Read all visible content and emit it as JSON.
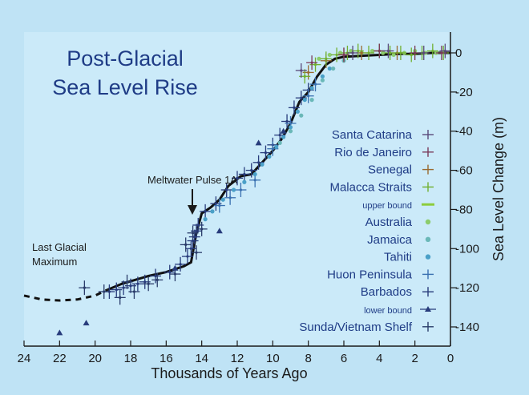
{
  "chart_data": {
    "type": "scatter",
    "title_lines": [
      "Post-Glacial",
      "Sea Level Rise"
    ],
    "xlabel": "Thousands of Years Ago",
    "ylabel": "Sea Level Change (m)",
    "xlim": [
      24,
      0
    ],
    "ylim": [
      -150,
      3
    ],
    "x_ticks": [
      24,
      22,
      20,
      18,
      16,
      14,
      12,
      10,
      8,
      6,
      4,
      2,
      0
    ],
    "y_ticks": [
      0,
      -20,
      -40,
      -60,
      -80,
      -100,
      -120,
      -140
    ],
    "grid": false,
    "legend_position": "right",
    "legend": [
      {
        "label": "Santa Catarina",
        "color": "#5a4a7a",
        "marker": "cross"
      },
      {
        "label": "Rio de Janeiro",
        "color": "#7a3a5a",
        "marker": "cross"
      },
      {
        "label": "Senegal",
        "color": "#9a6a30",
        "marker": "cross"
      },
      {
        "label": "Malacca Straits",
        "color": "#70b030",
        "marker": "cross"
      },
      {
        "label": "upper bound",
        "color": "#8ccc3c",
        "marker": "dash"
      },
      {
        "label": "Australia",
        "color": "#8ccc6c",
        "marker": "dot"
      },
      {
        "label": "Jamaica",
        "color": "#6ab8b8",
        "marker": "dot"
      },
      {
        "label": "Tahiti",
        "color": "#4aa0c8",
        "marker": "dot"
      },
      {
        "label": "Huon Peninsula",
        "color": "#3a70b0",
        "marker": "cross"
      },
      {
        "label": "Barbados",
        "color": "#283c7c",
        "marker": "cross"
      },
      {
        "label": "lower bound",
        "color": "#283c7c",
        "marker": "triangle"
      },
      {
        "label": "Sunda/Vietnam Shelf",
        "color": "#2a3c6a",
        "marker": "cross"
      }
    ],
    "annotations": [
      {
        "text": "Meltwater Pulse 1A",
        "x": 14.4,
        "y": -86
      },
      {
        "text_lines": [
          "Last Glacial",
          "Maximum"
        ],
        "x": 22,
        "y": -125
      }
    ],
    "trend_dashed": {
      "x": [
        24,
        23,
        22,
        21,
        20,
        19.3
      ],
      "y": [
        -124,
        -126,
        -126.5,
        -126,
        -124,
        -121
      ]
    },
    "trend_solid": {
      "x": [
        19.3,
        18.5,
        17,
        16,
        15,
        14.6,
        14.3,
        14,
        13.5,
        13,
        12.5,
        11.8,
        11.2,
        10.5,
        10,
        9.5,
        9,
        8.5,
        8,
        7.5,
        7,
        6.5,
        6,
        5,
        4,
        3,
        2,
        1,
        0
      ],
      "y": [
        -121,
        -118,
        -114,
        -112,
        -109,
        -107,
        -92,
        -82,
        -79,
        -75,
        -68,
        -63,
        -62,
        -55,
        -50,
        -44,
        -36,
        -25,
        -20,
        -12,
        -6,
        -3,
        -2,
        -1.5,
        -1,
        -0.5,
        -0.5,
        0,
        0
      ]
    },
    "series": [
      {
        "name": "Barbados",
        "color": "#283c7c",
        "marker": "cross",
        "x": [
          19.2,
          18.8,
          18.4,
          18.0,
          17.6,
          17.2,
          16.6,
          15.8,
          15.2,
          14.8,
          14.6,
          14.5,
          14.4,
          14.3,
          14.2,
          13.8,
          13.2,
          12.6,
          12.0,
          11.6,
          11.2,
          10.8,
          10.4,
          10.0,
          9.6,
          9.2,
          8.8,
          8.4,
          8.0
        ],
        "y": [
          -122,
          -121,
          -120,
          -119,
          -118,
          -117,
          -114,
          -112,
          -108,
          -104,
          -100,
          -96,
          -94,
          -91,
          -88,
          -81,
          -77,
          -70,
          -64,
          -62,
          -60,
          -56,
          -51,
          -47,
          -42,
          -35,
          -28,
          -23,
          -19
        ]
      },
      {
        "name": "Sunda/Vietnam Shelf",
        "color": "#2a3c6a",
        "marker": "cross",
        "x": [
          20.6,
          19.5,
          18.6,
          18.2,
          17.8,
          17.0,
          16.5,
          15.5,
          14.9,
          14.5,
          14.3,
          14.0
        ],
        "y": [
          -120,
          -122,
          -125,
          -117,
          -122,
          -118,
          -116,
          -113,
          -98,
          -92,
          -102,
          -90
        ]
      },
      {
        "name": "Huon Peninsula",
        "color": "#3a70b0",
        "marker": "cross",
        "x": [
          13.0,
          12.4,
          11.8,
          11.0,
          10.0,
          9.0,
          8.0,
          7.6
        ],
        "y": [
          -78,
          -74,
          -70,
          -65,
          -49,
          -36,
          -22,
          -16
        ]
      },
      {
        "name": "Tahiti",
        "color": "#4aa0c8",
        "marker": "dot",
        "x": [
          13.8,
          13.4,
          12.8,
          12.2,
          11.6,
          11.0,
          10.6,
          10.2,
          9.8,
          9.4,
          9.0,
          8.6,
          8.2,
          7.8,
          7.2,
          6.8
        ],
        "y": [
          -85,
          -81,
          -75,
          -70,
          -66,
          -62,
          -57,
          -53,
          -48,
          -43,
          -38,
          -30,
          -24,
          -18,
          -12,
          -8
        ]
      },
      {
        "name": "Jamaica",
        "color": "#6ab8b8",
        "marker": "dot",
        "x": [
          9.6,
          9.0,
          8.4,
          7.8,
          7.2,
          6.6,
          6.0
        ],
        "y": [
          -46,
          -40,
          -32,
          -24,
          -14,
          -8,
          -4
        ]
      },
      {
        "name": "Australia",
        "color": "#8ccc6c",
        "marker": "dot",
        "x": [
          7.4,
          6.8,
          6.2,
          5.6,
          5.0,
          4.4,
          3.8,
          3.2,
          2.6,
          2.0,
          1.4,
          0.8
        ],
        "y": [
          -3,
          -1,
          0,
          1,
          0,
          1,
          0,
          -1,
          0,
          1,
          0,
          0
        ]
      },
      {
        "name": "Senegal",
        "color": "#9a6a30",
        "marker": "cross",
        "x": [
          8.0,
          7.0,
          6.0,
          5.0,
          4.0,
          3.0
        ],
        "y": [
          -10,
          -4,
          -1,
          0,
          1,
          0
        ]
      },
      {
        "name": "Malacca Straits",
        "color": "#70b030",
        "marker": "cross",
        "x": [
          8.2,
          7.6,
          7.0,
          6.4,
          5.8,
          5.2,
          4.6,
          4.0,
          3.4,
          2.8,
          2.2,
          1.6,
          1.0,
          0.4
        ],
        "y": [
          -12,
          -6,
          -3,
          -1,
          0,
          1,
          0,
          1,
          0,
          0,
          -1,
          0,
          1,
          0
        ]
      },
      {
        "name": "Rio de Janeiro",
        "color": "#7a3a5a",
        "marker": "cross",
        "x": [
          7.8,
          6.0,
          4.0,
          2.0,
          0.5
        ],
        "y": [
          -5,
          -1,
          1,
          0,
          0
        ]
      },
      {
        "name": "Santa Catarina",
        "color": "#5a4a7a",
        "marker": "cross",
        "x": [
          8.4,
          5.5,
          3.5,
          1.5,
          0.3
        ],
        "y": [
          -9,
          0,
          1,
          0,
          1
        ]
      },
      {
        "name": "lower bound",
        "color": "#283c7c",
        "marker": "triangle",
        "x": [
          22.0,
          20.5,
          13.0,
          15.5,
          10.8,
          9.4
        ],
        "y": [
          -143,
          -138,
          -91,
          -110,
          -46,
          -40
        ]
      }
    ]
  }
}
